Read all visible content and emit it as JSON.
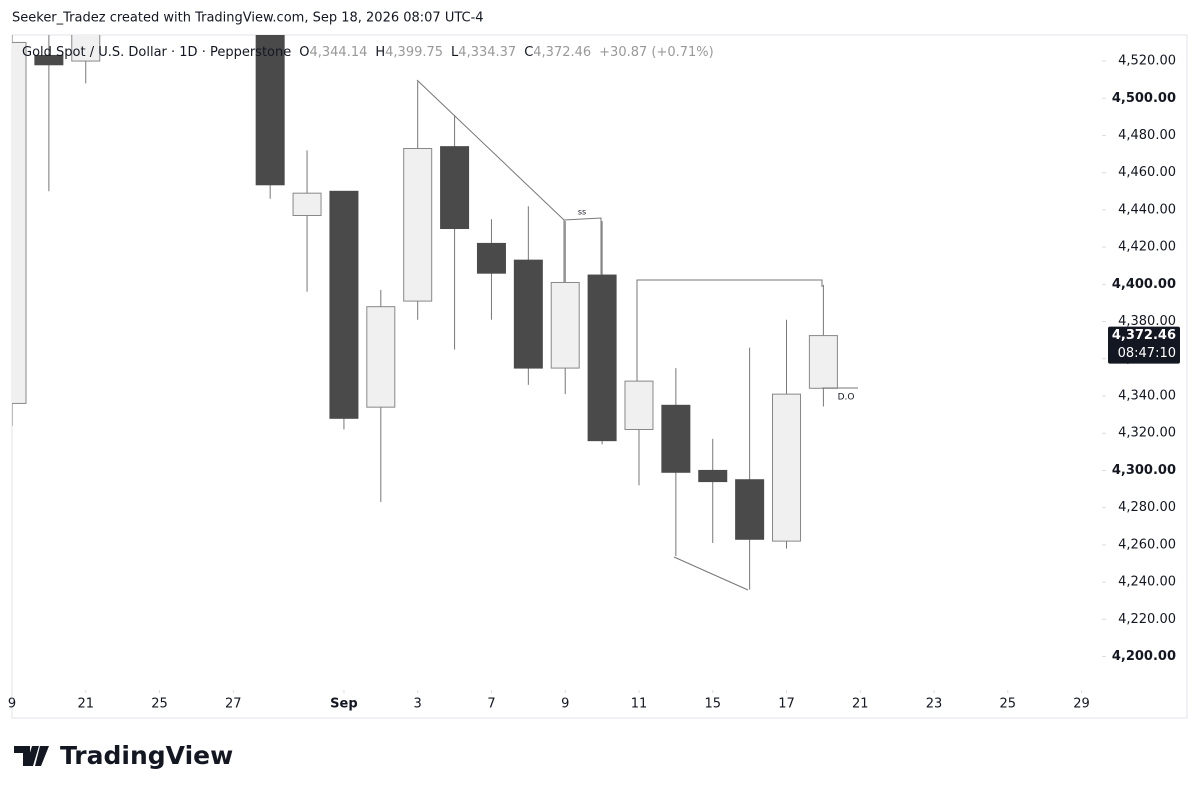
{
  "header": "Seeker_Tradez created with TradingView.com, Sep 18, 2026 08:07 UTC-4",
  "footer_logo": "TradingView",
  "chart_data": {
    "type": "candlestick",
    "legend": {
      "symbol": "Gold Spot / U.S. Dollar · 1D · Pepperstone",
      "open_label": "O",
      "open": "4,344.14",
      "high_label": "H",
      "high": "4,399.75",
      "low_label": "L",
      "low": "4,334.37",
      "close_label": "C",
      "close": "4,372.46",
      "change": "+30.87 (+0.71%)"
    },
    "x": [
      0,
      1,
      2,
      7,
      8,
      9,
      10,
      11,
      12,
      13,
      14,
      15,
      16,
      17,
      18,
      19,
      20,
      21,
      22
    ],
    "series": [
      {
        "up_color": "#f0f0f0",
        "down_color": "#4a4a4a",
        "open": [
          4336,
          4523,
          4520,
          4540,
          4437,
          4450,
          4334,
          4391,
          4474,
          4422,
          4413,
          4355,
          4405,
          4322,
          4335,
          4300,
          4295,
          4262,
          4344.14
        ],
        "high": [
          4540,
          4535,
          4545,
          4550,
          4472,
          4450,
          4397,
          4509,
          4491,
          4435,
          4442,
          4434,
          4434,
          4348,
          4355,
          4317,
          4366,
          4381,
          4399.75
        ],
        "low": [
          4324,
          4450,
          4508,
          4446,
          4396,
          4322,
          4283,
          4381,
          4365,
          4381,
          4346,
          4341,
          4314,
          4292,
          4254,
          4261,
          4236,
          4258,
          4334.37
        ],
        "close": [
          4530,
          4518,
          4535,
          4453.5,
          4449,
          4328,
          4388,
          4473,
          4430,
          4406,
          4355,
          4401,
          4316,
          4348,
          4299,
          4294,
          4263,
          4341,
          4372.46
        ]
      }
    ],
    "xlim": [
      0,
      29.5
    ],
    "xticks": [
      {
        "value": 0,
        "label": "9"
      },
      {
        "value": 2,
        "label": "21"
      },
      {
        "value": 4,
        "label": "25"
      },
      {
        "value": 6,
        "label": "27"
      },
      {
        "value": 9,
        "label": "Sep"
      },
      {
        "value": 11,
        "label": "3"
      },
      {
        "value": 13,
        "label": "7"
      },
      {
        "value": 15,
        "label": "9"
      },
      {
        "value": 17,
        "label": "11"
      },
      {
        "value": 19,
        "label": "15"
      },
      {
        "value": 21,
        "label": "17"
      },
      {
        "value": 23,
        "label": "21"
      },
      {
        "value": 25,
        "label": "23"
      },
      {
        "value": 27,
        "label": "25"
      },
      {
        "value": 29,
        "label": "29"
      }
    ],
    "ylim": [
      4182,
      4534
    ],
    "yticks": [
      {
        "value": 4200,
        "label": "4,200.00"
      },
      {
        "value": 4220,
        "label": "4,220.00"
      },
      {
        "value": 4240,
        "label": "4,240.00"
      },
      {
        "value": 4260,
        "label": "4,260.00"
      },
      {
        "value": 4280,
        "label": "4,280.00"
      },
      {
        "value": 4300,
        "label": "4,300.00"
      },
      {
        "value": 4320,
        "label": "4,320.00"
      },
      {
        "value": 4340,
        "label": "4,340.00"
      },
      {
        "value": 4360,
        "label": "4,360.00"
      },
      {
        "value": 4380,
        "label": "4,380.00"
      },
      {
        "value": 4400,
        "label": "4,400.00"
      },
      {
        "value": 4420,
        "label": "4,420.00"
      },
      {
        "value": 4440,
        "label": "4,440.00"
      },
      {
        "value": 4460,
        "label": "4,460.00"
      },
      {
        "value": 4480,
        "label": "4,480.00"
      },
      {
        "value": 4500,
        "label": "4,500.00"
      },
      {
        "value": 4520,
        "label": "4,520.00"
      }
    ],
    "price_label": {
      "value": 4372.46,
      "label": "4,372.46",
      "countdown": "08:47:10"
    },
    "annotations": {
      "ss": "ss",
      "do": "D.O"
    }
  }
}
